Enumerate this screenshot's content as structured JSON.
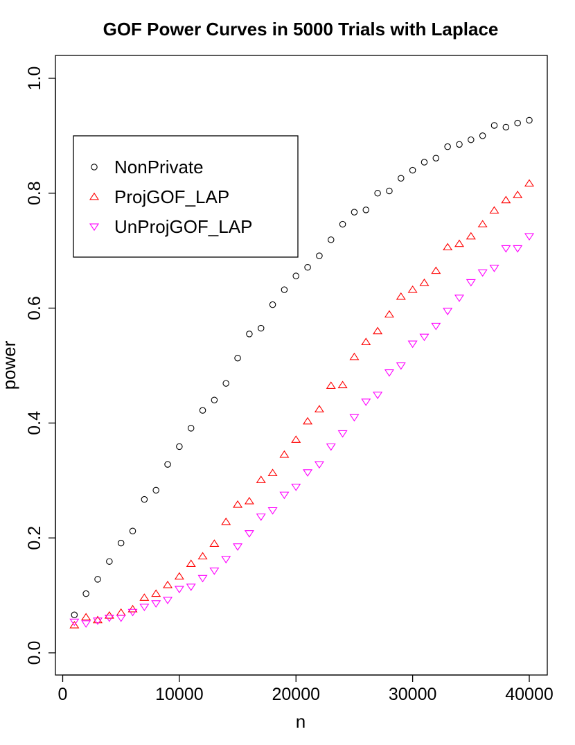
{
  "chart_data": {
    "type": "scatter",
    "title": "GOF Power Curves in  5000  Trials with Laplace",
    "xlabel": "n",
    "ylabel": "power",
    "xlim": [
      0,
      40000
    ],
    "ylim": [
      0,
      1
    ],
    "x_ticks": [
      0,
      10000,
      20000,
      30000,
      40000
    ],
    "x_tick_labels": [
      "0",
      "10000",
      "20000",
      "30000",
      "40000"
    ],
    "y_ticks": [
      0.0,
      0.2,
      0.4,
      0.6,
      0.8,
      1.0
    ],
    "y_tick_labels": [
      "0.0",
      "0.2",
      "0.4",
      "0.6",
      "0.8",
      "1.0"
    ],
    "grid": false,
    "legend_position": "top-left",
    "x": [
      1000,
      2000,
      3000,
      4000,
      5000,
      6000,
      7000,
      8000,
      9000,
      10000,
      11000,
      12000,
      13000,
      14000,
      15000,
      16000,
      17000,
      18000,
      19000,
      20000,
      21000,
      22000,
      23000,
      24000,
      25000,
      26000,
      27000,
      28000,
      29000,
      30000,
      31000,
      32000,
      33000,
      34000,
      35000,
      36000,
      37000,
      38000,
      39000,
      40000
    ],
    "series": [
      {
        "name": "NonPrivate",
        "marker": "circle",
        "color": "#000000",
        "values": [
          0.066,
          0.103,
          0.128,
          0.159,
          0.191,
          0.212,
          0.267,
          0.283,
          0.328,
          0.359,
          0.391,
          0.422,
          0.44,
          0.469,
          0.513,
          0.555,
          0.565,
          0.606,
          0.632,
          0.656,
          0.671,
          0.691,
          0.719,
          0.746,
          0.767,
          0.771,
          0.8,
          0.804,
          0.826,
          0.84,
          0.854,
          0.861,
          0.881,
          0.885,
          0.893,
          0.9,
          0.918,
          0.915,
          0.922,
          0.927
        ]
      },
      {
        "name": "ProjGOF_LAP",
        "marker": "triangle-up",
        "color": "#ff0000",
        "values": [
          0.048,
          0.062,
          0.057,
          0.065,
          0.07,
          0.076,
          0.096,
          0.103,
          0.118,
          0.133,
          0.155,
          0.168,
          0.19,
          0.228,
          0.258,
          0.264,
          0.301,
          0.313,
          0.345,
          0.371,
          0.403,
          0.424,
          0.465,
          0.466,
          0.515,
          0.541,
          0.56,
          0.589,
          0.62,
          0.632,
          0.644,
          0.665,
          0.706,
          0.712,
          0.725,
          0.746,
          0.77,
          0.788,
          0.797,
          0.817
        ]
      },
      {
        "name": "UnProjGOF_LAP",
        "marker": "triangle-down",
        "color": "#ff00ff",
        "values": [
          0.054,
          0.051,
          0.056,
          0.061,
          0.061,
          0.071,
          0.08,
          0.086,
          0.092,
          0.111,
          0.115,
          0.13,
          0.143,
          0.163,
          0.185,
          0.208,
          0.237,
          0.248,
          0.275,
          0.289,
          0.314,
          0.328,
          0.359,
          0.382,
          0.41,
          0.437,
          0.449,
          0.488,
          0.5,
          0.538,
          0.55,
          0.569,
          0.595,
          0.618,
          0.645,
          0.662,
          0.67,
          0.704,
          0.704,
          0.725
        ]
      }
    ]
  }
}
